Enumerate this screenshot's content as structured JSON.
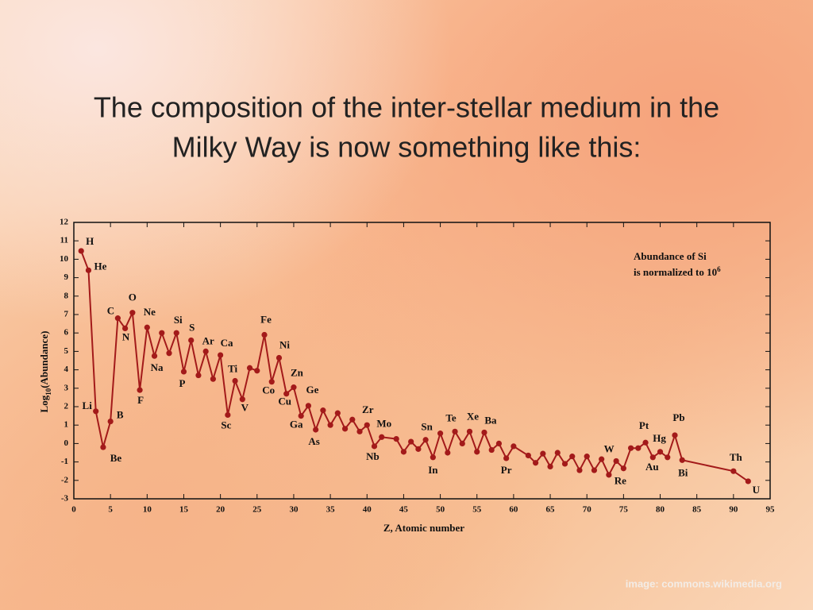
{
  "slide": {
    "title": [
      "The composition of the inter-stellar medium in the",
      "Milky Way is now something like this:"
    ],
    "credit": "image: commons.wikimedia.org"
  },
  "chart_data": {
    "type": "line",
    "color": "#a31a1a",
    "xlabel": "Z, Atomic number",
    "ylabel": [
      "Log",
      "10",
      "(Abundance)"
    ],
    "annotation": [
      "Abundance of Si",
      "is normalized to 10",
      "6"
    ],
    "xlim": [
      0,
      95
    ],
    "ylim": [
      -3,
      12
    ],
    "xticks": [
      0,
      5,
      10,
      15,
      20,
      25,
      30,
      35,
      40,
      45,
      50,
      55,
      60,
      65,
      70,
      75,
      80,
      85,
      90,
      95
    ],
    "yticks": [
      -3,
      -2,
      -1,
      0,
      1,
      2,
      3,
      4,
      5,
      6,
      7,
      8,
      9,
      10,
      11,
      12
    ],
    "x": [
      1,
      2,
      3,
      4,
      5,
      6,
      7,
      8,
      9,
      10,
      11,
      12,
      13,
      14,
      15,
      16,
      17,
      18,
      19,
      20,
      21,
      22,
      23,
      24,
      25,
      26,
      27,
      28,
      29,
      30,
      31,
      32,
      33,
      34,
      35,
      36,
      37,
      38,
      39,
      40,
      41,
      42,
      44,
      45,
      46,
      47,
      48,
      49,
      50,
      51,
      52,
      53,
      54,
      55,
      56,
      57,
      58,
      59,
      60,
      62,
      63,
      64,
      65,
      66,
      67,
      68,
      69,
      70,
      71,
      72,
      73,
      74,
      75,
      76,
      77,
      78,
      79,
      80,
      81,
      82,
      83,
      90,
      92
    ],
    "values": [
      10.45,
      9.4,
      1.75,
      -0.2,
      1.2,
      6.8,
      6.25,
      7.1,
      2.9,
      6.3,
      4.75,
      6.0,
      4.9,
      6.0,
      3.9,
      5.6,
      3.7,
      5.0,
      3.5,
      4.8,
      1.55,
      3.4,
      2.4,
      4.1,
      3.95,
      5.9,
      3.35,
      4.65,
      2.7,
      3.05,
      1.5,
      2.05,
      0.75,
      1.8,
      1.0,
      1.65,
      0.8,
      1.3,
      0.65,
      1.0,
      -0.15,
      0.35,
      0.25,
      -0.45,
      0.1,
      -0.3,
      0.2,
      -0.75,
      0.55,
      -0.5,
      0.65,
      0.0,
      0.65,
      -0.45,
      0.6,
      -0.35,
      0.0,
      -0.8,
      -0.15,
      -0.65,
      -1.05,
      -0.55,
      -1.25,
      -0.5,
      -1.1,
      -0.7,
      -1.45,
      -0.7,
      -1.45,
      -0.85,
      -1.7,
      -0.95,
      -1.35,
      -0.25,
      -0.25,
      0.05,
      -0.75,
      -0.45,
      -0.75,
      0.45,
      -0.9,
      -1.5,
      -2.05
    ],
    "labels": [
      "H",
      "He",
      "Li",
      "Be",
      "B",
      "C",
      "N",
      "O",
      "F",
      "Ne",
      "Na",
      null,
      null,
      "Si",
      "P",
      "S",
      null,
      "Ar",
      null,
      "Ca",
      "Sc",
      "Ti",
      "V",
      null,
      null,
      "Fe",
      "Co",
      "Ni",
      "Cu",
      "Zn",
      "Ga",
      "Ge",
      "As",
      null,
      null,
      null,
      null,
      null,
      null,
      "Zr",
      "Nb",
      "Mo",
      null,
      null,
      null,
      null,
      null,
      "In",
      "Sn",
      null,
      "Te",
      null,
      "Xe",
      null,
      "Ba",
      null,
      null,
      "Pr",
      null,
      null,
      null,
      null,
      null,
      null,
      null,
      null,
      null,
      null,
      null,
      null,
      null,
      "W",
      "Re",
      null,
      null,
      "Pt",
      "Au",
      "Hg",
      null,
      "Pb",
      "Bi",
      "Th",
      "U"
    ]
  }
}
